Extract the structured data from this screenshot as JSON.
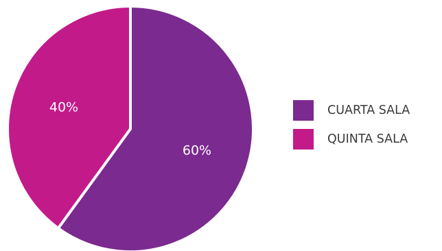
{
  "chart_data": {
    "type": "pie",
    "title": "",
    "categories": [
      "CUARTA SALA",
      "QUINTA SALA"
    ],
    "values": [
      60,
      40
    ],
    "labels": [
      "60%",
      "40%"
    ],
    "colors": [
      "#7b2a8f",
      "#c31a8a"
    ],
    "start_angle_deg": 0,
    "direction": "clockwise",
    "legend": "right"
  }
}
